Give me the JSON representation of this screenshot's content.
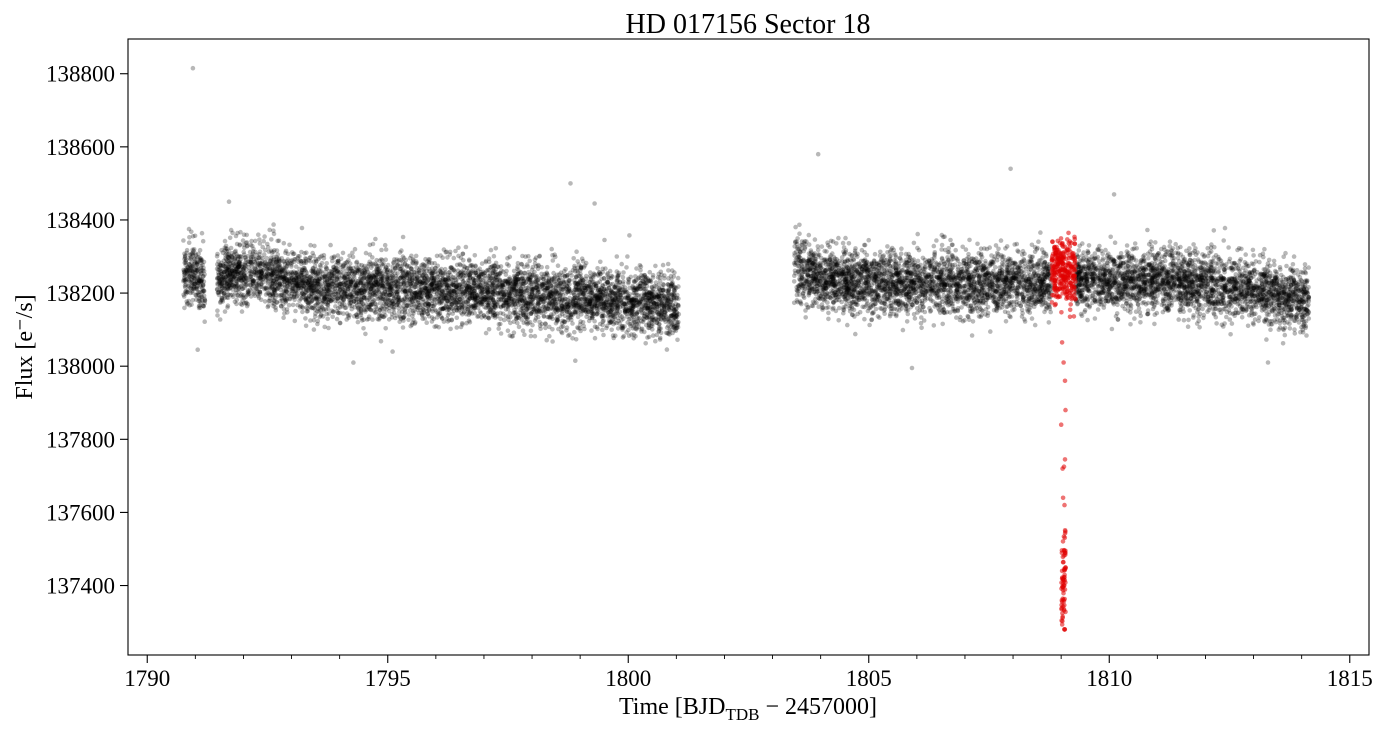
{
  "chart_data": {
    "type": "scatter",
    "title": "HD 017156 Sector 18",
    "xlabel": {
      "prefix": "Time [BJD",
      "subscript": "TDB",
      "suffix": " − 2457000]"
    },
    "ylabel": "Flux [e⁻/s]",
    "xlim": [
      1789.6,
      1815.4
    ],
    "ylim": [
      137210,
      138895
    ],
    "xticks": [
      1790,
      1795,
      1800,
      1805,
      1810,
      1815
    ],
    "xticks_minor_step": 1,
    "yticks": [
      137400,
      137600,
      137800,
      138000,
      138200,
      138400,
      138600,
      138800
    ],
    "grid": false,
    "legend": "none",
    "series": [
      {
        "color": "#000000",
        "alpha": 0.28,
        "segments": [
          {
            "x_start": 1790.75,
            "x_end": 1791.2,
            "median_flux": 138250,
            "scatter": 55
          },
          {
            "x_start": 1791.45,
            "x_end": 1801.05,
            "median_flux": 138215,
            "scatter": 50,
            "trend": "gentle hump, ~138260 near 1792 falling to ~138150 near 1801"
          },
          {
            "x_start": 1803.45,
            "x_end": 1808.8,
            "median_flux": 138225,
            "scatter": 50,
            "trend": "~138280 at 1803.5 settling to ~138210"
          },
          {
            "x_start": 1809.3,
            "x_end": 1814.15,
            "median_flux": 138215,
            "scatter": 50,
            "trend": "~138240 falling to ~138160 near 1814"
          }
        ],
        "outliers": [
          {
            "x": 1790.95,
            "y": 138815
          },
          {
            "x": 1803.95,
            "y": 138580
          },
          {
            "x": 1807.95,
            "y": 138540
          },
          {
            "x": 1798.8,
            "y": 138500
          },
          {
            "x": 1810.1,
            "y": 138470
          },
          {
            "x": 1799.3,
            "y": 138445
          },
          {
            "x": 1791.7,
            "y": 138450
          },
          {
            "x": 1805.9,
            "y": 137995
          },
          {
            "x": 1798.9,
            "y": 138015
          },
          {
            "x": 1791.05,
            "y": 138045
          },
          {
            "x": 1813.3,
            "y": 138010
          },
          {
            "x": 1795.1,
            "y": 138040
          }
        ]
      },
      {
        "color": "#e00000",
        "alpha": 0.55,
        "label_hint": "transit window",
        "segments": [
          {
            "x_start": 1808.8,
            "x_end": 1809.3,
            "median_flux": 138260,
            "scatter": 50
          }
        ],
        "transit": {
          "center": 1809.05,
          "half_width": 0.045,
          "depth_flux": 137400,
          "min_flux": 137280,
          "ingress_points": [
            {
              "x": 1809.02,
              "y": 138065
            },
            {
              "x": 1809.05,
              "y": 138010
            },
            {
              "x": 1809.08,
              "y": 137960
            },
            {
              "x": 1809.09,
              "y": 137880
            },
            {
              "x": 1809.0,
              "y": 137840
            },
            {
              "x": 1809.03,
              "y": 137720
            },
            {
              "x": 1809.08,
              "y": 137745
            },
            {
              "x": 1809.06,
              "y": 137725
            },
            {
              "x": 1809.04,
              "y": 137640
            },
            {
              "x": 1809.07,
              "y": 137620
            }
          ]
        }
      }
    ]
  }
}
